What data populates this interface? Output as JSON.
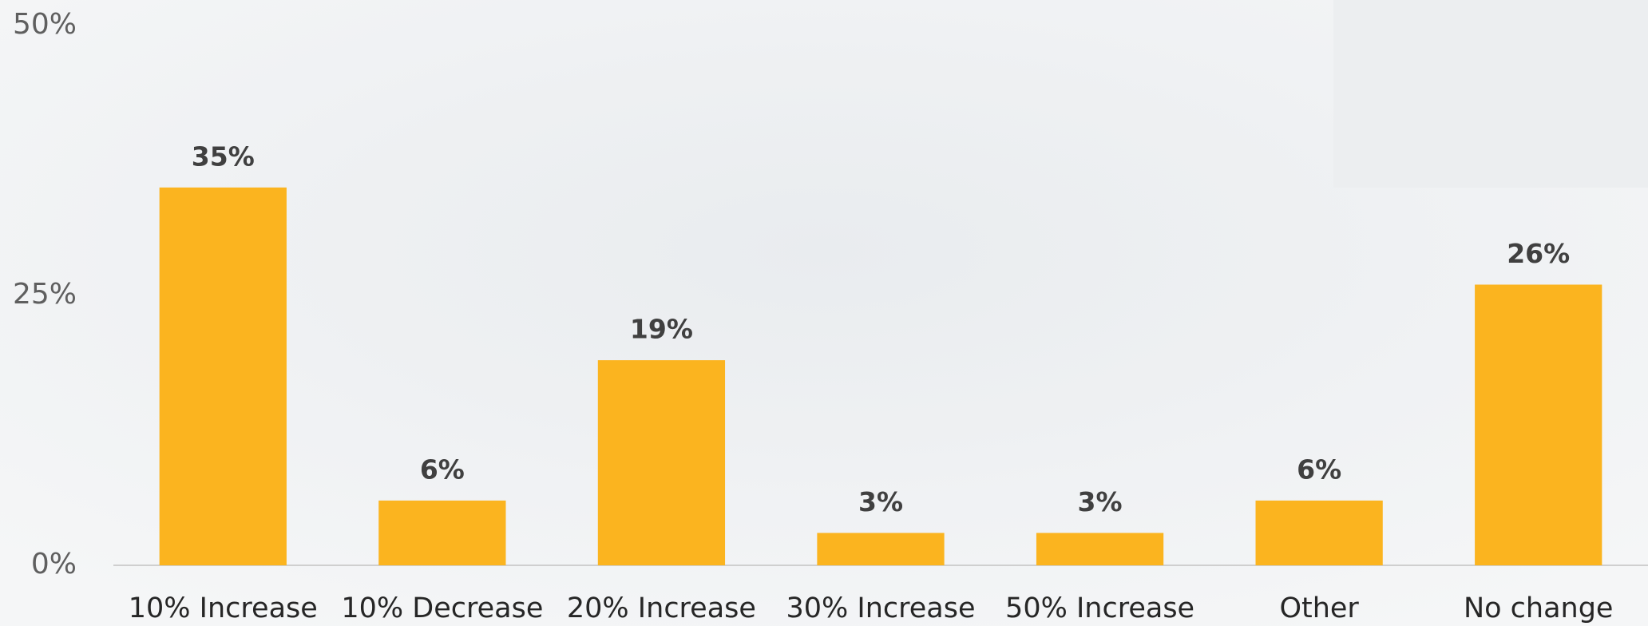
{
  "chart_data": {
    "type": "bar",
    "categories": [
      "10% Increase",
      "10% Decrease",
      "20% Increase",
      "30% Increase",
      "50% Increase",
      "Other",
      "No change"
    ],
    "values": [
      35,
      6,
      19,
      3,
      3,
      6,
      26
    ],
    "value_labels": [
      "35%",
      "6%",
      "19%",
      "3%",
      "3%",
      "6%",
      "26%"
    ],
    "color": "#fbb41f",
    "ylim": [
      0,
      50
    ],
    "yticks": [
      {
        "value": 0,
        "label": "0%"
      },
      {
        "value": 25,
        "label": "25%"
      },
      {
        "value": 50,
        "label": "50%"
      }
    ],
    "grid": false
  }
}
